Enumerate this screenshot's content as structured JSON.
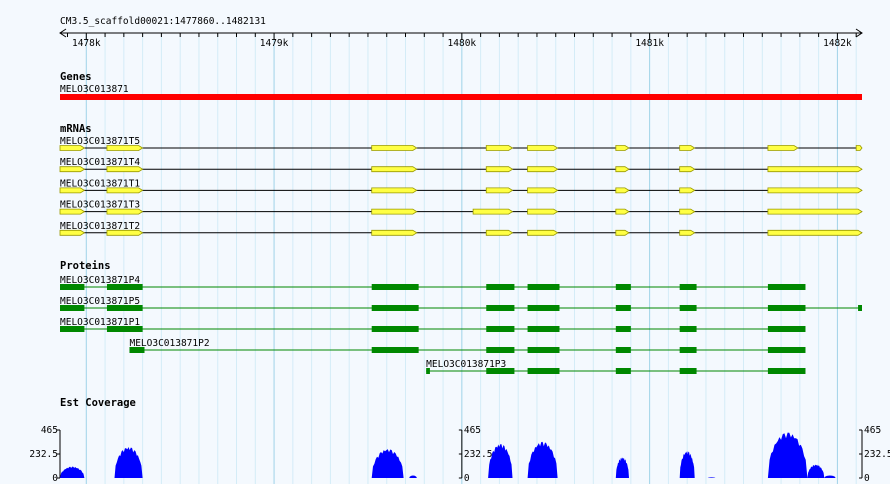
{
  "view": {
    "region_label": "CM3.5_scaffold00021:1477860..1482131",
    "start_bp": 1477860,
    "end_bp": 1482131
  },
  "ruler": {
    "ticks": [
      {
        "label": "1478k",
        "bp": 1478000
      },
      {
        "label": "1479k",
        "bp": 1479000
      },
      {
        "label": "1480k",
        "bp": 1480000
      },
      {
        "label": "1481k",
        "bp": 1481000
      },
      {
        "label": "1482k",
        "bp": 1482000
      }
    ]
  },
  "colors": {
    "gene": "#ff0000",
    "mrna_exon": "#ffff44",
    "mrna_exon_border": "#999900",
    "protein": "#008800",
    "coverage": "#0000ff",
    "grid_major": "#9fd3e8",
    "grid_minor": "#d4ecf7",
    "background": "#f4f9fe"
  },
  "tracks": {
    "genes": {
      "title": "Genes",
      "features": [
        {
          "name": "MELO3C013871",
          "start": 1477860,
          "end": 1482131
        }
      ]
    },
    "mrnas": {
      "title": "mRNAs",
      "features": [
        {
          "name": "MELO3C013871T5",
          "start": 1477860,
          "end": 1482131,
          "exons": [
            [
              1477860,
              1477990
            ],
            [
              1478110,
              1478300
            ],
            [
              1479520,
              1479760
            ],
            [
              1480130,
              1480270
            ],
            [
              1480350,
              1480510
            ],
            [
              1480820,
              1480890
            ],
            [
              1481160,
              1481240
            ],
            [
              1481630,
              1481790
            ],
            [
              1482100,
              1482131
            ]
          ]
        },
        {
          "name": "MELO3C013871T4",
          "start": 1477860,
          "end": 1482131,
          "exons": [
            [
              1477860,
              1477990
            ],
            [
              1478110,
              1478300
            ],
            [
              1479520,
              1479760
            ],
            [
              1480130,
              1480270
            ],
            [
              1480350,
              1480510
            ],
            [
              1480820,
              1480890
            ],
            [
              1481160,
              1481240
            ],
            [
              1481630,
              1482131
            ]
          ]
        },
        {
          "name": "MELO3C013871T1",
          "start": 1477860,
          "end": 1482131,
          "exons": [
            [
              1477860,
              1477990
            ],
            [
              1478110,
              1478300
            ],
            [
              1479520,
              1479760
            ],
            [
              1480130,
              1480270
            ],
            [
              1480350,
              1480510
            ],
            [
              1480820,
              1480890
            ],
            [
              1481160,
              1481240
            ],
            [
              1481630,
              1482131
            ]
          ]
        },
        {
          "name": "MELO3C013871T3",
          "start": 1477860,
          "end": 1482131,
          "exons": [
            [
              1477860,
              1477990
            ],
            [
              1478110,
              1478300
            ],
            [
              1479520,
              1479760
            ],
            [
              1480060,
              1480270
            ],
            [
              1480350,
              1480510
            ],
            [
              1480820,
              1480890
            ],
            [
              1481160,
              1481240
            ],
            [
              1481630,
              1482131
            ]
          ]
        },
        {
          "name": "MELO3C013871T2",
          "start": 1477860,
          "end": 1482131,
          "exons": [
            [
              1477860,
              1477990
            ],
            [
              1478110,
              1478300
            ],
            [
              1479520,
              1479760
            ],
            [
              1480130,
              1480270
            ],
            [
              1480350,
              1480510
            ],
            [
              1480820,
              1480890
            ],
            [
              1481160,
              1481240
            ],
            [
              1481630,
              1482131
            ]
          ]
        }
      ]
    },
    "proteins": {
      "title": "Proteins",
      "features": [
        {
          "name": "MELO3C013871P4",
          "label_pos": "left",
          "start": 1477860,
          "end": 1481830,
          "blocks": [
            [
              1477860,
              1477990
            ],
            [
              1478110,
              1478300
            ],
            [
              1479520,
              1479770
            ],
            [
              1480130,
              1480280
            ],
            [
              1480350,
              1480520
            ],
            [
              1480820,
              1480900
            ],
            [
              1481160,
              1481250
            ],
            [
              1481630,
              1481830
            ]
          ]
        },
        {
          "name": "MELO3C013871P5",
          "label_pos": "left",
          "start": 1477860,
          "end": 1482131,
          "blocks": [
            [
              1477860,
              1477990
            ],
            [
              1478110,
              1478300
            ],
            [
              1479520,
              1479770
            ],
            [
              1480130,
              1480280
            ],
            [
              1480350,
              1480520
            ],
            [
              1480820,
              1480900
            ],
            [
              1481160,
              1481250
            ],
            [
              1481630,
              1481830
            ],
            [
              1482110,
              1482131
            ]
          ]
        },
        {
          "name": "MELO3C013871P1",
          "label_pos": "left",
          "start": 1477860,
          "end": 1481830,
          "blocks": [
            [
              1477860,
              1477990
            ],
            [
              1478110,
              1478300
            ],
            [
              1479520,
              1479770
            ],
            [
              1480130,
              1480280
            ],
            [
              1480350,
              1480520
            ],
            [
              1480820,
              1480900
            ],
            [
              1481160,
              1481250
            ],
            [
              1481630,
              1481830
            ]
          ]
        },
        {
          "name": "MELO3C013871P2",
          "label_pos": "left",
          "start": 1478230,
          "end": 1481830,
          "blocks": [
            [
              1478230,
              1478310
            ],
            [
              1479520,
              1479770
            ],
            [
              1480130,
              1480280
            ],
            [
              1480350,
              1480520
            ],
            [
              1480820,
              1480900
            ],
            [
              1481160,
              1481250
            ],
            [
              1481630,
              1481830
            ]
          ]
        },
        {
          "name": "MELO3C013871P3",
          "label_pos": "above",
          "start": 1479810,
          "end": 1481830,
          "blocks": [
            [
              1479810,
              1479830
            ],
            [
              1480130,
              1480280
            ],
            [
              1480350,
              1480520
            ],
            [
              1480820,
              1480900
            ],
            [
              1481160,
              1481250
            ],
            [
              1481630,
              1481830
            ]
          ]
        }
      ]
    },
    "coverage": {
      "title": "Est Coverage",
      "y_max_label": "465",
      "y_mid_label": "232.5",
      "y_min_label": "0",
      "y_max": 465,
      "axis_bp": [
        1477860,
        1480000,
        1482131
      ],
      "peaks": [
        {
          "start": 1477860,
          "end": 1477990,
          "height": 110
        },
        {
          "start": 1478150,
          "end": 1478300,
          "height": 300
        },
        {
          "start": 1479520,
          "end": 1479690,
          "height": 280
        },
        {
          "start": 1479720,
          "end": 1479760,
          "height": 25
        },
        {
          "start": 1480140,
          "end": 1480270,
          "height": 330
        },
        {
          "start": 1480350,
          "end": 1480510,
          "height": 350
        },
        {
          "start": 1480820,
          "end": 1480890,
          "height": 200
        },
        {
          "start": 1481160,
          "end": 1481240,
          "height": 260
        },
        {
          "start": 1481310,
          "end": 1481350,
          "height": 6
        },
        {
          "start": 1481630,
          "end": 1481840,
          "height": 440
        },
        {
          "start": 1481840,
          "end": 1481930,
          "height": 130
        },
        {
          "start": 1481930,
          "end": 1481990,
          "height": 25
        }
      ]
    }
  }
}
